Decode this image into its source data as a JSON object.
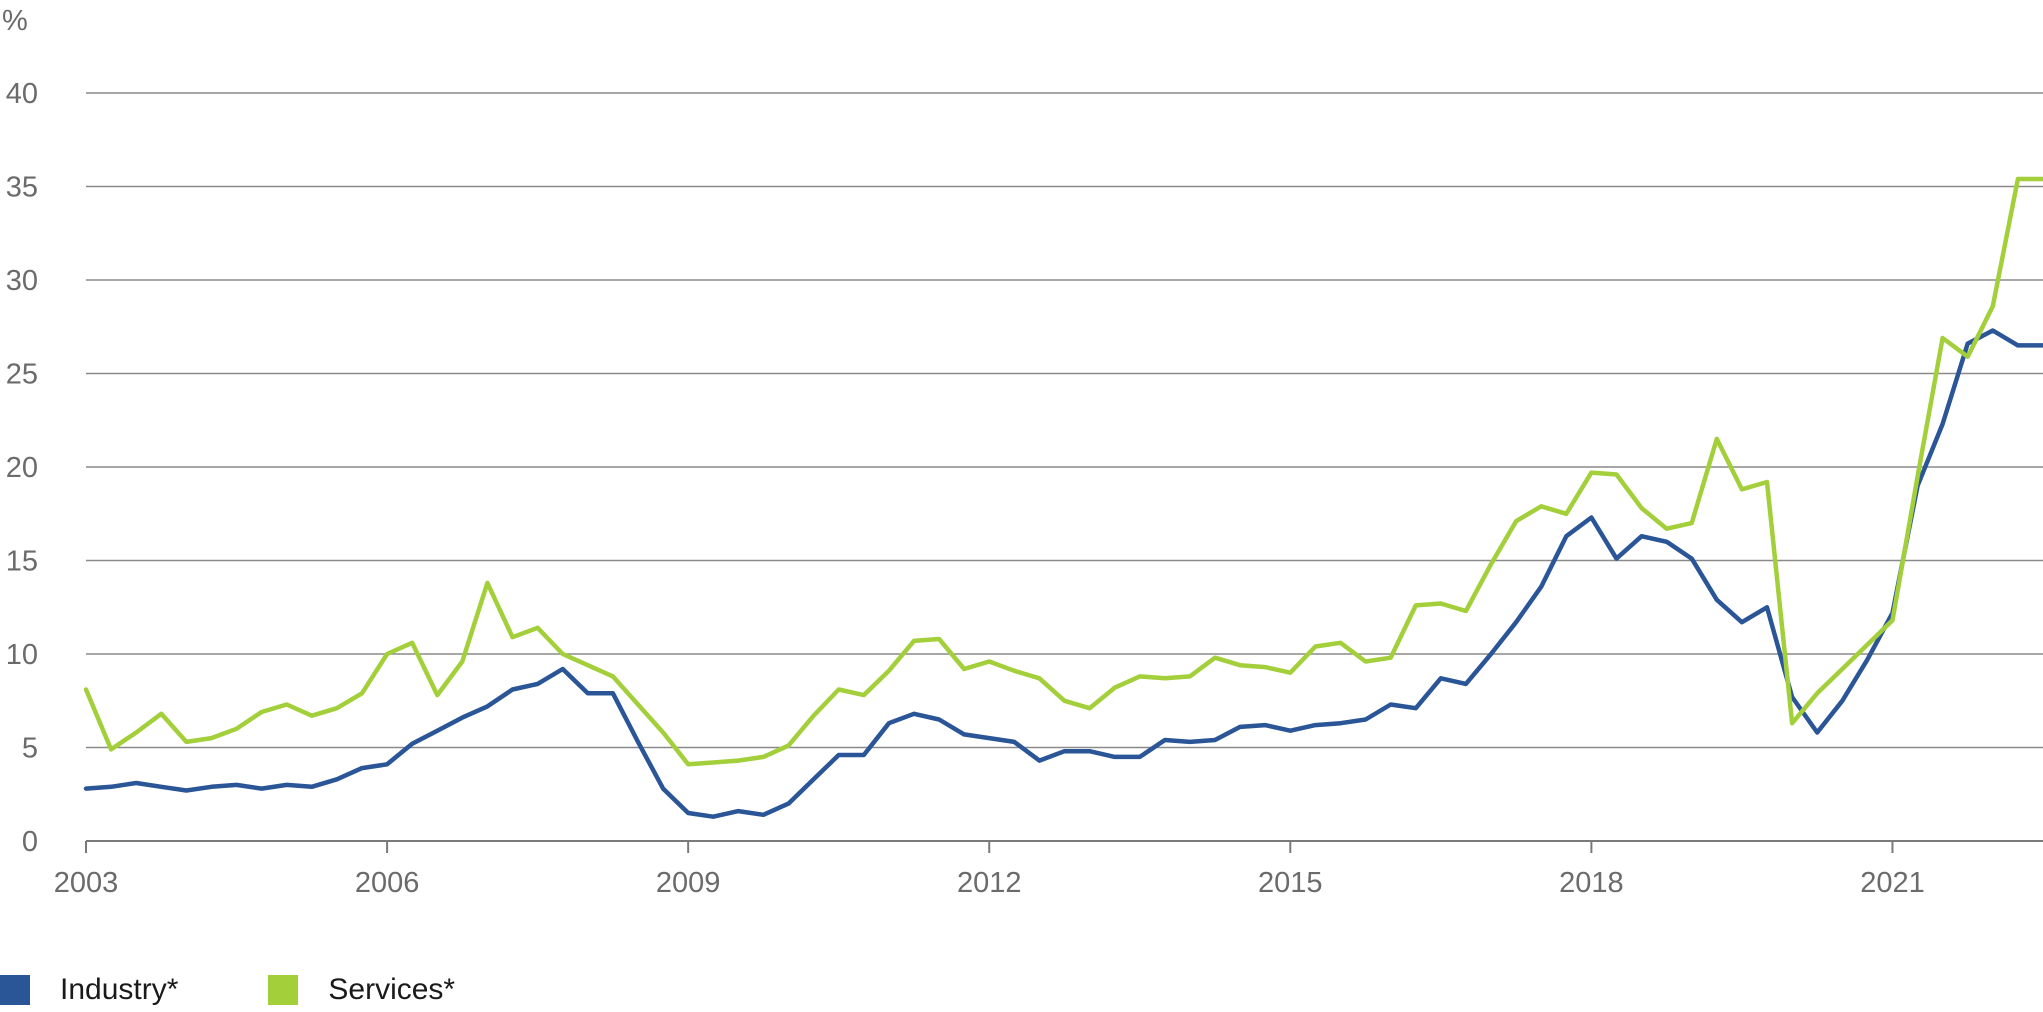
{
  "chart_data": {
    "type": "line",
    "unit_label": "%",
    "ylim": [
      0,
      40
    ],
    "y_ticks": [
      0,
      5,
      10,
      15,
      20,
      25,
      30,
      35,
      40
    ],
    "x_range": [
      2003,
      2022.5
    ],
    "x_ticks": [
      "2003",
      "2006",
      "2009",
      "2012",
      "2015",
      "2018",
      "2021"
    ],
    "grid": true,
    "legend_position": "bottom-left",
    "series": [
      {
        "name": "Industry*",
        "color": "#2a5597",
        "x": [
          2003.0,
          2003.25,
          2003.5,
          2003.75,
          2004.0,
          2004.25,
          2004.5,
          2004.75,
          2005.0,
          2005.25,
          2005.5,
          2005.75,
          2006.0,
          2006.25,
          2006.5,
          2006.75,
          2007.0,
          2007.25,
          2007.5,
          2007.75,
          2008.0,
          2008.25,
          2008.5,
          2008.75,
          2009.0,
          2009.25,
          2009.5,
          2009.75,
          2010.0,
          2010.25,
          2010.5,
          2010.75,
          2011.0,
          2011.25,
          2011.5,
          2011.75,
          2012.0,
          2012.25,
          2012.5,
          2012.75,
          2013.0,
          2013.25,
          2013.5,
          2013.75,
          2014.0,
          2014.25,
          2014.5,
          2014.75,
          2015.0,
          2015.25,
          2015.5,
          2015.75,
          2016.0,
          2016.25,
          2016.5,
          2016.75,
          2017.0,
          2017.25,
          2017.5,
          2017.75,
          2018.0,
          2018.25,
          2018.5,
          2018.75,
          2019.0,
          2019.25,
          2019.5,
          2019.75,
          2020.0,
          2020.25,
          2020.5,
          2020.75,
          2021.0,
          2021.25,
          2021.5,
          2021.75,
          2022.0,
          2022.25,
          2022.5
        ],
        "values": [
          2.8,
          2.9,
          3.1,
          2.9,
          2.7,
          2.9,
          3.0,
          2.8,
          3.0,
          2.9,
          3.3,
          3.9,
          4.1,
          5.2,
          5.9,
          6.6,
          7.2,
          8.1,
          8.4,
          9.2,
          7.9,
          7.9,
          5.3,
          2.8,
          1.5,
          1.3,
          1.6,
          1.4,
          2.0,
          3.3,
          4.6,
          4.6,
          6.3,
          6.8,
          6.5,
          5.7,
          5.5,
          5.3,
          4.3,
          4.8,
          4.8,
          4.5,
          4.5,
          5.4,
          5.3,
          5.4,
          6.1,
          6.2,
          5.9,
          6.2,
          6.3,
          6.5,
          7.3,
          7.1,
          8.7,
          8.4,
          10.0,
          11.7,
          13.6,
          16.3,
          17.3,
          15.1,
          16.3,
          16.0,
          15.1,
          12.9,
          11.7,
          12.5,
          7.7,
          5.8,
          7.5,
          9.7,
          12.2,
          19.0,
          22.3,
          26.6,
          27.3,
          26.5,
          26.5
        ]
      },
      {
        "name": "Services*",
        "color": "#a3cf3b",
        "x": [
          2003.0,
          2003.25,
          2003.5,
          2003.75,
          2004.0,
          2004.25,
          2004.5,
          2004.75,
          2005.0,
          2005.25,
          2005.5,
          2005.75,
          2006.0,
          2006.25,
          2006.5,
          2006.75,
          2007.0,
          2007.25,
          2007.5,
          2007.75,
          2008.0,
          2008.25,
          2008.5,
          2008.75,
          2009.0,
          2009.25,
          2009.5,
          2009.75,
          2010.0,
          2010.25,
          2010.5,
          2010.75,
          2011.0,
          2011.25,
          2011.5,
          2011.75,
          2012.0,
          2012.25,
          2012.5,
          2012.75,
          2013.0,
          2013.25,
          2013.5,
          2013.75,
          2014.0,
          2014.25,
          2014.5,
          2014.75,
          2015.0,
          2015.25,
          2015.5,
          2015.75,
          2016.0,
          2016.25,
          2016.5,
          2016.75,
          2017.0,
          2017.25,
          2017.5,
          2017.75,
          2018.0,
          2018.25,
          2018.5,
          2018.75,
          2019.0,
          2019.25,
          2019.5,
          2019.75,
          2020.0,
          2020.25,
          2020.5,
          2020.75,
          2021.0,
          2021.25,
          2021.5,
          2021.75,
          2022.0,
          2022.25,
          2022.5
        ],
        "values": [
          8.1,
          4.9,
          5.8,
          6.8,
          5.3,
          5.5,
          6.0,
          6.9,
          7.3,
          6.7,
          7.1,
          7.9,
          10.0,
          10.6,
          7.8,
          9.6,
          13.8,
          10.9,
          11.4,
          10.0,
          9.4,
          8.8,
          7.3,
          5.8,
          4.1,
          4.2,
          4.3,
          4.5,
          5.1,
          6.7,
          8.1,
          7.8,
          9.1,
          10.7,
          10.8,
          9.2,
          9.6,
          9.1,
          8.7,
          7.5,
          7.1,
          8.2,
          8.8,
          8.7,
          8.8,
          9.8,
          9.4,
          9.3,
          9.0,
          10.4,
          10.6,
          9.6,
          9.8,
          12.6,
          12.7,
          12.3,
          14.8,
          17.1,
          17.9,
          17.5,
          19.7,
          19.6,
          17.8,
          16.7,
          17.0,
          21.5,
          18.8,
          19.2,
          6.3,
          7.9,
          9.2,
          10.5,
          11.8,
          19.5,
          26.9,
          25.9,
          28.6,
          35.4,
          35.4
        ]
      }
    ]
  }
}
